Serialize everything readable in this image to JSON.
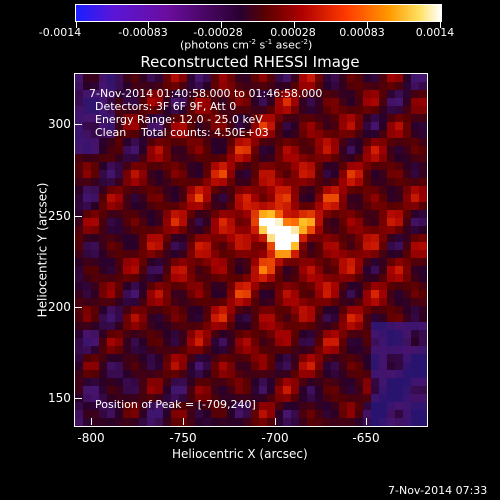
{
  "colorbar": {
    "tick_labels": [
      "-0.0014",
      "-0.00083",
      "-0.00028",
      "0.00028",
      "0.00083",
      "0.0014"
    ],
    "units": "(photons cm",
    "units_sup1": "-2",
    "units_mid": " s",
    "units_sup2": "-1",
    "units_end": " asec",
    "units_sup3": "-2",
    "units_close": ")"
  },
  "title": "Reconstructed RHESSI Image",
  "overlay": {
    "time_range": "7-Nov-2014 01:40:58.000 to 01:46:58.000",
    "detectors": "Detectors: 3F 6F 9F, Att 0",
    "energy": "Energy Range: 12.0 - 25.0 keV",
    "clean": "Clean",
    "total_counts": "Total counts: 4.50E+03",
    "peak": "Position of Peak = [-709,240]"
  },
  "axes": {
    "x_ticks": [
      "-800",
      "-750",
      "-700",
      "-650"
    ],
    "y_ticks": [
      "300",
      "250",
      "200",
      "150"
    ],
    "xlabel": "Heliocentric X (arcsec)",
    "ylabel": "Heliocentric Y (arcsec)"
  },
  "footer": {
    "timestamp": "7-Nov-2014 07:33"
  },
  "colors": {
    "background": "#000000",
    "peak": "#ffffff",
    "hot": "#ffb000",
    "mid": "#cc1a00",
    "low": "#5a0000",
    "neg": "#3a1060"
  }
}
